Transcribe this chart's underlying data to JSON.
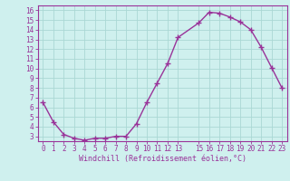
{
  "x": [
    0,
    1,
    2,
    3,
    4,
    5,
    6,
    7,
    8,
    9,
    10,
    11,
    12,
    13,
    15,
    16,
    17,
    18,
    19,
    20,
    21,
    22,
    23
  ],
  "y": [
    6.5,
    4.5,
    3.2,
    2.8,
    2.6,
    2.8,
    2.8,
    3.0,
    3.0,
    4.3,
    6.5,
    8.5,
    10.5,
    13.2,
    14.7,
    15.8,
    15.7,
    15.3,
    14.8,
    14.0,
    12.2,
    10.1,
    8.0
  ],
  "line_color": "#993399",
  "marker": "+",
  "markersize": 4,
  "markeredgewidth": 1.0,
  "linewidth": 1.0,
  "bg_color": "#cff0ee",
  "grid_color": "#aad8d4",
  "xlabel": "Windchill (Refroidissement éolien,°C)",
  "xlim": [
    -0.5,
    23.5
  ],
  "ylim": [
    2.5,
    16.5
  ],
  "yticks": [
    3,
    4,
    5,
    6,
    7,
    8,
    9,
    10,
    11,
    12,
    13,
    14,
    15,
    16
  ],
  "xticks": [
    0,
    1,
    2,
    3,
    4,
    5,
    6,
    7,
    8,
    9,
    10,
    11,
    12,
    13,
    15,
    16,
    17,
    18,
    19,
    20,
    21,
    22,
    23
  ],
  "xtick_labels": [
    "0",
    "1",
    "2",
    "3",
    "4",
    "5",
    "6",
    "7",
    "8",
    "9",
    "10",
    "11",
    "12",
    "13",
    "15",
    "16",
    "17",
    "18",
    "19",
    "20",
    "21",
    "22",
    "23"
  ],
  "label_color": "#993399",
  "tick_color": "#993399",
  "axis_color": "#993399",
  "tick_fontsize": 5.5,
  "xlabel_fontsize": 6.0
}
